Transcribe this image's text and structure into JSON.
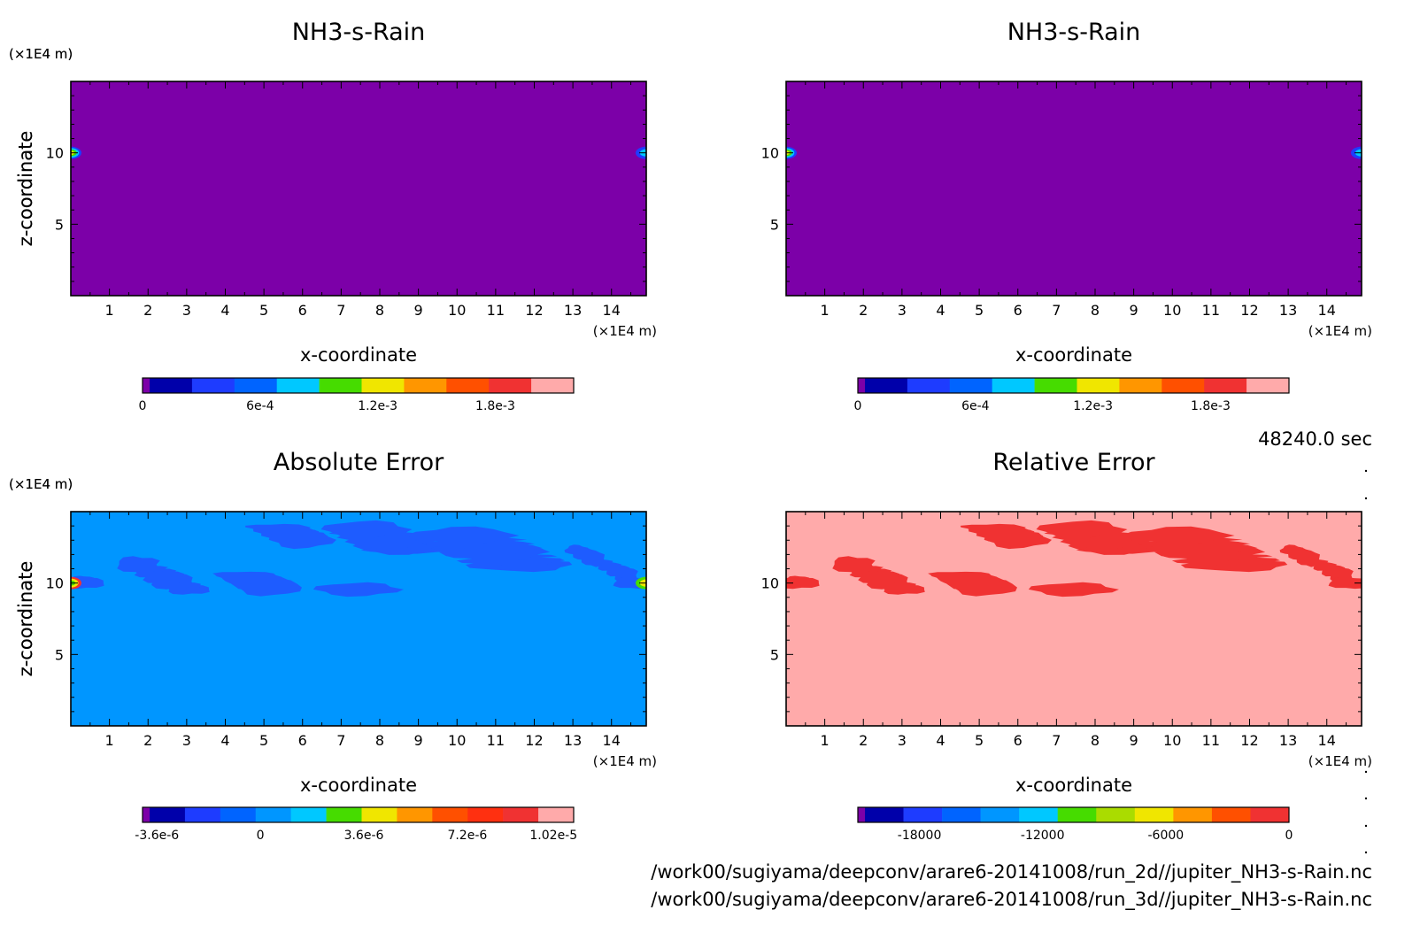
{
  "time_label": "48240.0 sec",
  "file_paths": [
    "/work00/sugiyama/deepconv/arare6-20141008/run_2d//jupiter_NH3-s-Rain.nc",
    "/work00/sugiyama/deepconv/arare6-20141008/run_3d//jupiter_NH3-s-Rain.nc"
  ],
  "colors": {
    "purple": "#7c00a8",
    "light_blue": "#0096ff",
    "royal_blue": "#1e3cff",
    "pink": "#ffaaaa",
    "red": "#f03232",
    "frame": "#000000"
  },
  "chart_data": [
    {
      "type": "heatmap",
      "title": "NH3-s-Rain",
      "xlabel": "x-coordinate",
      "ylabel": "z-coordinate",
      "x_unit": "(×1E4 m)",
      "y_unit": "(×1E4 m)",
      "xlim": [
        0,
        14.9
      ],
      "ylim": [
        0,
        15
      ],
      "xticks": [
        "1",
        "2",
        "3",
        "4",
        "5",
        "6",
        "7",
        "8",
        "9",
        "10",
        "11",
        "12",
        "13",
        "14"
      ],
      "yticks": [
        "5",
        "10"
      ],
      "background": "#7c00a8",
      "features": [
        {
          "kind": "edge-blob",
          "x": 0,
          "z": 10,
          "colors": [
            "#1e3cff",
            "#00c8ff",
            "#46dc00",
            "#f0e600"
          ]
        },
        {
          "kind": "edge-blob",
          "x": 14.9,
          "z": 10,
          "colors": [
            "#1e3cff",
            "#00c8ff"
          ]
        }
      ],
      "colorbar": {
        "colors": [
          "#7c00a8",
          "#0000aa",
          "#1e3cff",
          "#0064ff",
          "#00c8ff",
          "#46dc00",
          "#f0e600",
          "#ff9600",
          "#ff5000",
          "#f03232",
          "#ffaaaa"
        ],
        "labels": [
          "0",
          "6e-4",
          "1.2e-3",
          "1.8e-3"
        ],
        "label_values": [
          0,
          0.0006,
          0.0012,
          0.0018
        ],
        "range": [
          0,
          0.0022
        ]
      }
    },
    {
      "type": "heatmap",
      "title": "NH3-s-Rain",
      "xlabel": "x-coordinate",
      "ylabel": "z-coordinate",
      "x_unit": "(×1E4 m)",
      "y_unit": "(×1E4 m)",
      "xlim": [
        0,
        14.9
      ],
      "ylim": [
        0,
        15
      ],
      "xticks": [
        "1",
        "2",
        "3",
        "4",
        "5",
        "6",
        "7",
        "8",
        "9",
        "10",
        "11",
        "12",
        "13",
        "14"
      ],
      "yticks": [
        "5",
        "10"
      ],
      "background": "#7c00a8",
      "features": [
        {
          "kind": "edge-blob",
          "x": 0,
          "z": 10,
          "colors": [
            "#1e3cff",
            "#00c8ff",
            "#46dc00",
            "#f0e600"
          ]
        },
        {
          "kind": "edge-blob",
          "x": 14.9,
          "z": 10,
          "colors": [
            "#1e3cff",
            "#00c8ff"
          ]
        }
      ],
      "colorbar": {
        "colors": [
          "#7c00a8",
          "#0000aa",
          "#1e3cff",
          "#0064ff",
          "#00c8ff",
          "#46dc00",
          "#f0e600",
          "#ff9600",
          "#ff5000",
          "#f03232",
          "#ffaaaa"
        ],
        "labels": [
          "0",
          "6e-4",
          "1.2e-3",
          "1.8e-3"
        ],
        "label_values": [
          0,
          0.0006,
          0.0012,
          0.0018
        ],
        "range": [
          0,
          0.0022
        ]
      }
    },
    {
      "type": "heatmap",
      "title": "Absolute Error",
      "xlabel": "x-coordinate",
      "ylabel": "z-coordinate",
      "x_unit": "(×1E4 m)",
      "y_unit": "(×1E4 m)",
      "xlim": [
        0,
        14.9
      ],
      "ylim": [
        0,
        15
      ],
      "xticks": [
        "1",
        "2",
        "3",
        "4",
        "5",
        "6",
        "7",
        "8",
        "9",
        "10",
        "11",
        "12",
        "13",
        "14"
      ],
      "yticks": [
        "5",
        "10"
      ],
      "background": "#0096ff",
      "patch_color": "#1e5cff",
      "band_z": [
        9.5,
        14
      ],
      "features": [
        {
          "kind": "edge-blob",
          "x": 0,
          "z": 10,
          "colors": [
            "#f03232",
            "#f0e600",
            "#46dc00"
          ]
        },
        {
          "kind": "edge-blob",
          "x": 14.9,
          "z": 10,
          "colors": [
            "#46dc00",
            "#f0e600"
          ]
        }
      ],
      "colorbar": {
        "colors": [
          "#7c00a8",
          "#0000aa",
          "#1e3cff",
          "#0064ff",
          "#0096ff",
          "#00c8ff",
          "#46dc00",
          "#f0e600",
          "#ff9600",
          "#ff5000",
          "#ff3010",
          "#f03232",
          "#ffaaaa"
        ],
        "labels": [
          "-3.6e-6",
          "0",
          "3.6e-6",
          "7.2e-6",
          "1.02e-5"
        ],
        "label_values": [
          -3.6e-06,
          0,
          3.6e-06,
          7.2e-06,
          1.02e-05
        ],
        "range": [
          -4.1e-06,
          1.09e-05
        ]
      }
    },
    {
      "type": "heatmap",
      "title": "Relative Error",
      "xlabel": "x-coordinate",
      "ylabel": "z-coordinate",
      "x_unit": "(×1E4 m)",
      "y_unit": "(×1E4 m)",
      "xlim": [
        0,
        14.9
      ],
      "ylim": [
        0,
        15
      ],
      "xticks": [
        "1",
        "2",
        "3",
        "4",
        "5",
        "6",
        "7",
        "8",
        "9",
        "10",
        "11",
        "12",
        "13",
        "14"
      ],
      "yticks": [
        "5",
        "10"
      ],
      "background": "#ffaaaa",
      "patch_color": "#f03232",
      "band_z": [
        9.5,
        14
      ],
      "features": [],
      "colorbar": {
        "colors": [
          "#7c00a8",
          "#0000aa",
          "#1e3cff",
          "#0064ff",
          "#0096ff",
          "#00c8ff",
          "#46dc00",
          "#aadc00",
          "#f0e600",
          "#ff9600",
          "#ff5000",
          "#f03232"
        ],
        "labels": [
          "-18000",
          "-12000",
          "-6000",
          "0"
        ],
        "label_values": [
          -18000,
          -12000,
          -6000,
          0
        ],
        "range": [
          -21000,
          0
        ]
      }
    }
  ]
}
